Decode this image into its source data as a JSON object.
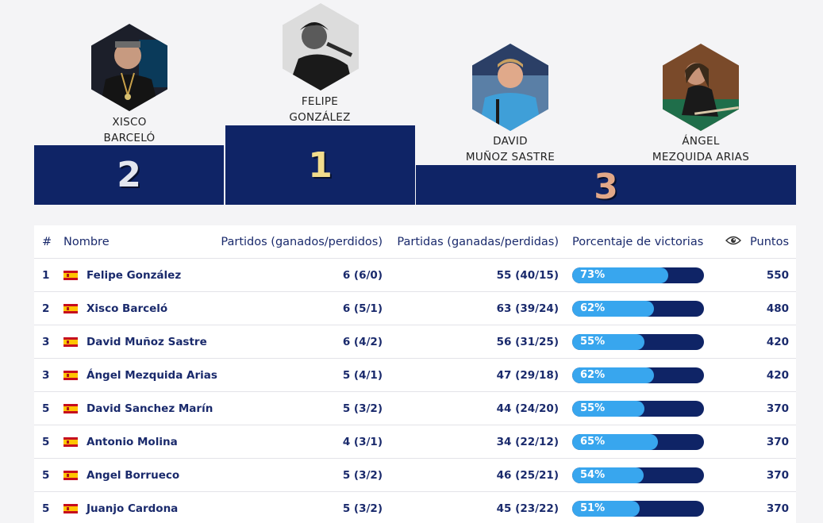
{
  "podium": {
    "first": {
      "first_name": "FELIPE",
      "last_name": "GONZÁLEZ",
      "rank": "1"
    },
    "second": {
      "first_name": "XISCO",
      "last_name": "BARCELÓ",
      "rank": "2"
    },
    "third_a": {
      "first_name": "DAVID",
      "last_name": "MUÑOZ SASTRE"
    },
    "third_b": {
      "first_name": "ÁNGEL",
      "last_name": "MEZQUIDA ARIAS"
    },
    "third_rank": "3"
  },
  "table": {
    "headers": {
      "pos": "#",
      "name": "Nombre",
      "matches": "Partidos (ganados/perdidos)",
      "games": "Partidas (ganadas/perdidas)",
      "pct": "Porcentaje de victorias",
      "eye_icon": "eye-icon",
      "points": "Puntos"
    },
    "rows": [
      {
        "pos": "1",
        "name": "Felipe González",
        "matches": "6 (6/0)",
        "games": "55 (40/15)",
        "pct_label": "73%",
        "pct": 73,
        "points": "550"
      },
      {
        "pos": "2",
        "name": "Xisco Barceló",
        "matches": "6 (5/1)",
        "games": "63 (39/24)",
        "pct_label": "62%",
        "pct": 62,
        "points": "480"
      },
      {
        "pos": "3",
        "name": "David Muñoz Sastre",
        "matches": "6 (4/2)",
        "games": "56 (31/25)",
        "pct_label": "55%",
        "pct": 55,
        "points": "420"
      },
      {
        "pos": "3",
        "name": "Ángel Mezquida Arias",
        "matches": "5 (4/1)",
        "games": "47 (29/18)",
        "pct_label": "62%",
        "pct": 62,
        "points": "420"
      },
      {
        "pos": "5",
        "name": "David Sanchez Marín",
        "matches": "5 (3/2)",
        "games": "44 (24/20)",
        "pct_label": "55%",
        "pct": 55,
        "points": "370"
      },
      {
        "pos": "5",
        "name": "Antonio Molina",
        "matches": "4 (3/1)",
        "games": "34 (22/12)",
        "pct_label": "65%",
        "pct": 65,
        "points": "370"
      },
      {
        "pos": "5",
        "name": "Angel Borrueco",
        "matches": "5 (3/2)",
        "games": "46 (25/21)",
        "pct_label": "54%",
        "pct": 54,
        "points": "370"
      },
      {
        "pos": "5",
        "name": "Juanjo Cardona",
        "matches": "5 (3/2)",
        "games": "45 (23/22)",
        "pct_label": "51%",
        "pct": 51,
        "points": "370"
      }
    ]
  },
  "colors": {
    "navy": "#0f2466",
    "bar_fill": "#38a6ee",
    "text": "#1a2a6c",
    "flag": "spain-flag-icon"
  }
}
